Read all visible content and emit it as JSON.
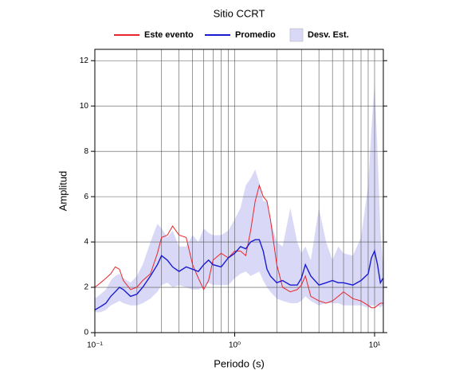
{
  "chart_data": {
    "type": "line",
    "title": "Sitio CCRT",
    "x_label": "Periodo (s)",
    "y_label": "Amplitud",
    "x_scale": "log",
    "grid": true,
    "xlim": [
      0.1,
      11.55
    ],
    "ylim": [
      0,
      12.5
    ],
    "xticks": [
      {
        "value": 0.1,
        "label": "10⁻¹"
      },
      {
        "value": 1,
        "label": "10⁰"
      },
      {
        "value": 10,
        "label": "10¹"
      }
    ],
    "yticks": [
      0,
      2,
      4,
      6,
      8,
      10,
      12
    ],
    "x": [
      0.1,
      0.11,
      0.12,
      0.13,
      0.14,
      0.15,
      0.16,
      0.18,
      0.2,
      0.22,
      0.25,
      0.28,
      0.3,
      0.33,
      0.36,
      0.4,
      0.45,
      0.5,
      0.55,
      0.6,
      0.65,
      0.7,
      0.8,
      0.9,
      1.0,
      1.1,
      1.2,
      1.3,
      1.4,
      1.5,
      1.6,
      1.7,
      1.8,
      2.0,
      2.2,
      2.5,
      2.8,
      3.0,
      3.2,
      3.5,
      4.0,
      4.5,
      5,
      5.5,
      6,
      7,
      8,
      9,
      9.5,
      10,
      10.5,
      11,
      11.5
    ],
    "series": [
      {
        "name": "Este evento",
        "color": "#e8262a",
        "values": [
          2.0,
          2.2,
          2.4,
          2.6,
          2.9,
          2.8,
          2.3,
          1.9,
          2.0,
          2.3,
          2.6,
          3.5,
          4.2,
          4.3,
          4.7,
          4.3,
          4.2,
          3.0,
          2.4,
          1.9,
          2.3,
          3.2,
          3.5,
          3.3,
          3.6,
          3.6,
          3.4,
          4.5,
          5.8,
          6.5,
          6.0,
          5.8,
          5.0,
          3.0,
          2.0,
          1.8,
          1.9,
          2.1,
          2.5,
          1.6,
          1.4,
          1.3,
          1.4,
          1.6,
          1.8,
          1.5,
          1.4,
          1.2,
          1.1,
          1.1,
          1.2,
          1.3,
          1.3
        ]
      },
      {
        "name": "Promedio",
        "color": "#1a1ad0",
        "values": [
          1.0,
          1.15,
          1.3,
          1.6,
          1.8,
          2.0,
          1.9,
          1.6,
          1.7,
          2.0,
          2.5,
          3.0,
          3.4,
          3.2,
          2.9,
          2.7,
          2.9,
          2.8,
          2.7,
          3.0,
          3.2,
          3.0,
          2.9,
          3.3,
          3.5,
          3.8,
          3.7,
          4.0,
          4.1,
          4.1,
          3.6,
          2.8,
          2.5,
          2.2,
          2.3,
          2.1,
          2.1,
          2.4,
          3.0,
          2.5,
          2.1,
          2.2,
          2.3,
          2.2,
          2.2,
          2.1,
          2.3,
          2.6,
          3.3,
          3.6,
          3.0,
          2.2,
          2.4
        ]
      },
      {
        "name": "Desv. Est.",
        "color": "#d9d9f7",
        "upper": [
          1.5,
          1.7,
          1.9,
          2.3,
          2.5,
          2.6,
          2.4,
          2.2,
          2.5,
          3.0,
          4.0,
          4.8,
          4.6,
          4.2,
          4.5,
          3.8,
          3.8,
          4.3,
          4.0,
          4.6,
          4.4,
          4.3,
          4.3,
          4.5,
          5.0,
          5.5,
          6.5,
          6.8,
          7.2,
          6.6,
          5.8,
          5.8,
          5.0,
          4.0,
          3.8,
          5.5,
          4.0,
          3.5,
          3.8,
          3.2,
          5.5,
          4.0,
          3.2,
          3.8,
          3.5,
          3.4,
          4.2,
          6.5,
          9.0,
          11.0,
          8.0,
          4.5,
          3.0
        ],
        "lower": [
          0.9,
          0.9,
          1.0,
          1.2,
          1.3,
          1.4,
          1.3,
          1.2,
          1.2,
          1.3,
          1.5,
          1.8,
          2.1,
          2.2,
          2.0,
          2.1,
          2.0,
          1.9,
          1.9,
          2.0,
          2.2,
          2.1,
          2.1,
          2.1,
          2.4,
          2.6,
          2.7,
          2.5,
          2.6,
          2.7,
          2.3,
          2.0,
          1.8,
          1.5,
          1.4,
          1.3,
          1.3,
          1.4,
          1.6,
          1.4,
          1.2,
          1.3,
          1.3,
          1.3,
          1.2,
          1.2,
          1.2,
          1.1,
          1.2,
          1.2,
          1.2,
          1.1,
          1.2
        ]
      }
    ]
  }
}
